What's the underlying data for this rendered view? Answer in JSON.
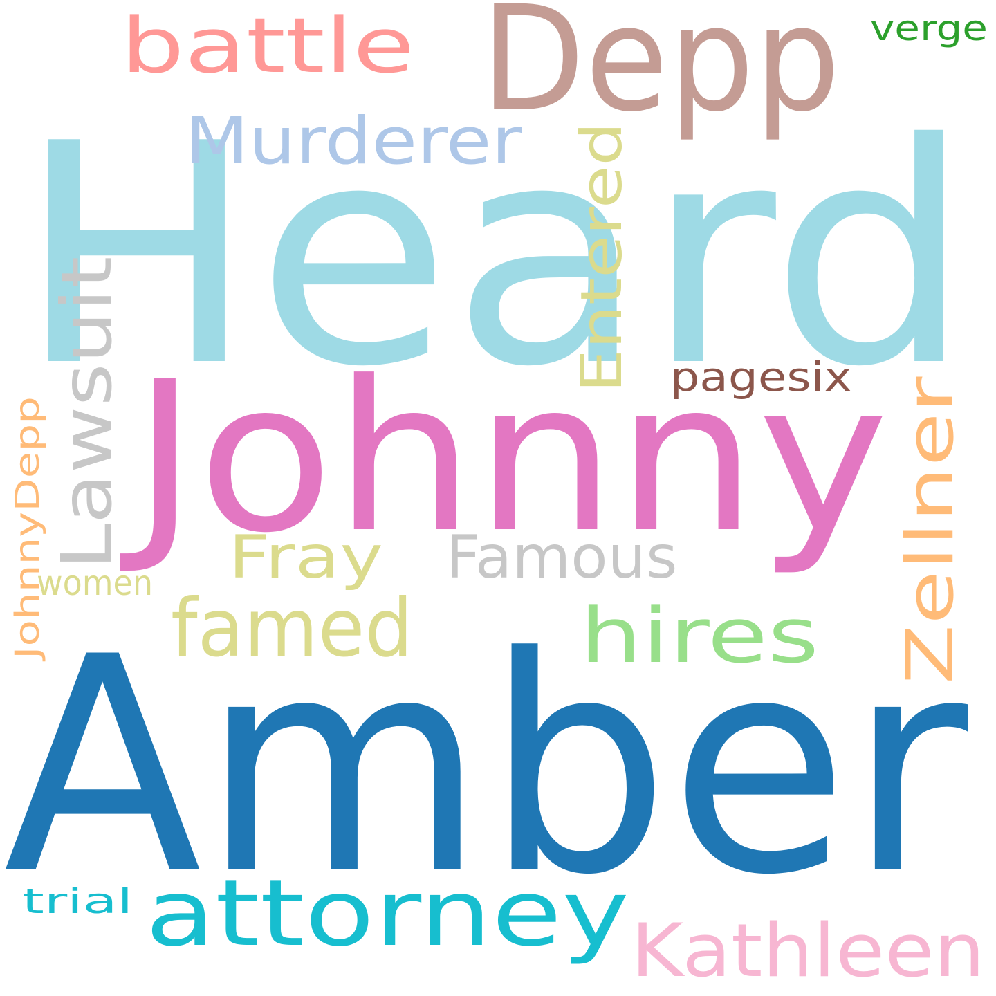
{
  "words": [
    {
      "id": "heard",
      "text": "Heard",
      "color": "#9edae5",
      "orientation": "horizontal"
    },
    {
      "id": "amber",
      "text": "Amber",
      "color": "#1f77b4",
      "orientation": "horizontal"
    },
    {
      "id": "johnny",
      "text": "Johnny",
      "color": "#e377c2",
      "orientation": "horizontal"
    },
    {
      "id": "depp",
      "text": "Depp",
      "color": "#c49c94",
      "orientation": "horizontal"
    },
    {
      "id": "battle",
      "text": "battle",
      "color": "#ff9896",
      "orientation": "horizontal"
    },
    {
      "id": "murderer",
      "text": "Murderer",
      "color": "#aec7e8",
      "orientation": "horizontal"
    },
    {
      "id": "entered",
      "text": "Entered",
      "color": "#dbdb8d",
      "orientation": "vertical"
    },
    {
      "id": "lawsuit",
      "text": "Lawsuit",
      "color": "#c7c7c7",
      "orientation": "vertical"
    },
    {
      "id": "zellner",
      "text": "Zellner",
      "color": "#ffbb78",
      "orientation": "vertical"
    },
    {
      "id": "johnnydepp",
      "text": "JohnnyDepp",
      "color": "#ffbb78",
      "orientation": "vertical"
    },
    {
      "id": "pagesix",
      "text": "pagesix",
      "color": "#8c564b",
      "orientation": "horizontal"
    },
    {
      "id": "fray",
      "text": "Fray",
      "color": "#dbdb8d",
      "orientation": "horizontal"
    },
    {
      "id": "famous",
      "text": "Famous",
      "color": "#c7c7c7",
      "orientation": "horizontal"
    },
    {
      "id": "famed",
      "text": "famed",
      "color": "#dbdb8d",
      "orientation": "horizontal"
    },
    {
      "id": "hires",
      "text": "hires",
      "color": "#98df8a",
      "orientation": "horizontal"
    },
    {
      "id": "women",
      "text": "women",
      "color": "#dbdb8d",
      "orientation": "horizontal"
    },
    {
      "id": "attorney",
      "text": "attorney",
      "color": "#17becf",
      "orientation": "horizontal"
    },
    {
      "id": "kathleen",
      "text": "Kathleen",
      "color": "#f7b6d2",
      "orientation": "horizontal"
    },
    {
      "id": "trial",
      "text": "trial",
      "color": "#17becf",
      "orientation": "horizontal"
    },
    {
      "id": "verge",
      "text": "verge",
      "color": "#2ca02c",
      "orientation": "horizontal"
    }
  ]
}
